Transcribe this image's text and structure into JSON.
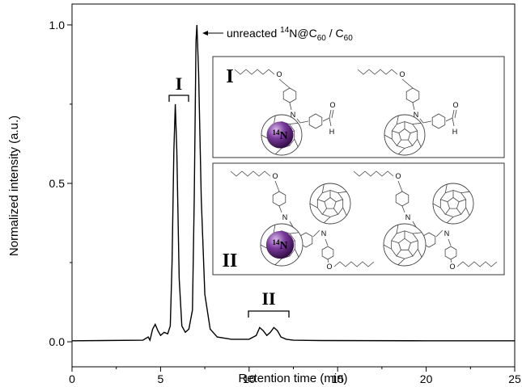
{
  "chart_data": {
    "type": "line",
    "xlabel": "Retention time (min)",
    "ylabel": "Normalized intensity (a.u.)",
    "x": [
      0,
      4.0,
      4.3,
      4.4,
      4.55,
      4.7,
      4.85,
      5.0,
      5.2,
      5.4,
      5.55,
      5.65,
      5.75,
      5.83,
      5.92,
      6.05,
      6.2,
      6.4,
      6.6,
      6.8,
      6.9,
      7.0,
      7.05,
      7.15,
      7.3,
      7.5,
      7.8,
      8.2,
      9,
      10,
      10.4,
      10.6,
      10.8,
      11.0,
      11.2,
      11.4,
      11.6,
      11.8,
      12.1,
      12.5,
      14,
      20,
      25
    ],
    "values": [
      0.003,
      0.005,
      0.015,
      0.005,
      0.04,
      0.055,
      0.035,
      0.02,
      0.03,
      0.025,
      0.05,
      0.25,
      0.6,
      0.75,
      0.6,
      0.2,
      0.05,
      0.03,
      0.04,
      0.1,
      0.45,
      0.95,
      1.0,
      0.85,
      0.45,
      0.15,
      0.04,
      0.015,
      0.008,
      0.008,
      0.02,
      0.045,
      0.035,
      0.02,
      0.03,
      0.045,
      0.035,
      0.015,
      0.008,
      0.005,
      0.004,
      0.003,
      0.003
    ],
    "color": "#000000",
    "xlim": [
      0,
      25
    ],
    "ylim": [
      -0.079,
      1.066
    ],
    "xticks": [
      0,
      5,
      10,
      15,
      20,
      25
    ],
    "xminorticks": [
      2.5,
      7.5,
      12.5,
      17.5,
      22.5
    ],
    "yticks": [
      {
        "value": 0,
        "label": "0.0"
      },
      {
        "value": 0.5,
        "label": "0.5"
      },
      {
        "value": 1,
        "label": "1.0"
      }
    ],
    "yminorticks": [
      0.25,
      0.75
    ],
    "annotations": {
      "peak_I": "I",
      "peak_II": "II",
      "main_peak": {
        "prefix": "unreacted ",
        "iso": "14",
        "mid": "N@C",
        "sub1": "60",
        "sep": " / C",
        "sub2": "60"
      }
    },
    "inset": {
      "labels": [
        "I",
        "II"
      ],
      "nitrogen": "N",
      "oxygen": "O",
      "hydrogen": "H",
      "endohedral": {
        "iso": "14",
        "element": "N"
      }
    }
  }
}
